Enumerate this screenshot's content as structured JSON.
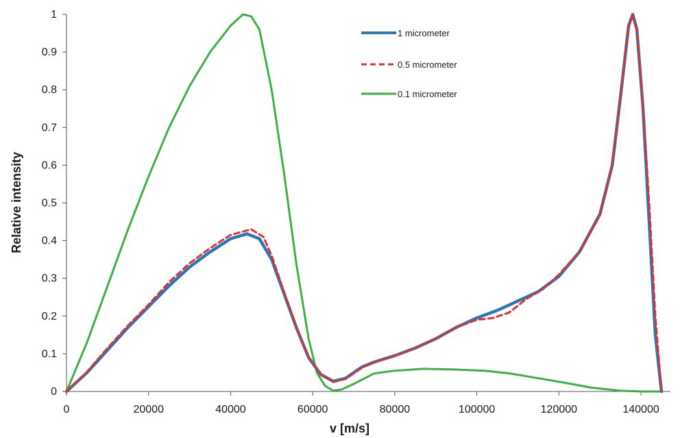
{
  "chart_data": {
    "type": "line",
    "title": "",
    "xlabel": "v [m/s]",
    "ylabel": "Relative intensity",
    "xlim": [
      0,
      150000
    ],
    "ylim": [
      0,
      1
    ],
    "x_ticks": [
      0,
      20000,
      40000,
      60000,
      80000,
      100000,
      120000,
      140000
    ],
    "x_tick_labels": [
      "0",
      "20000",
      "40000",
      "60000",
      "80000",
      "100000",
      "120000",
      "140000"
    ],
    "y_ticks": [
      0,
      0.1,
      0.2,
      0.3,
      0.4,
      0.5,
      0.6,
      0.7,
      0.8,
      0.9,
      1
    ],
    "y_tick_labels": [
      "0",
      "0.1",
      "0.2",
      "0.3",
      "0.4",
      "0.5",
      "0.6",
      "0.7",
      "0.8",
      "0.9",
      "1"
    ],
    "grid": false,
    "legend_position": "top-center",
    "series": [
      {
        "name": "1 micrometer",
        "color": "#2e75b6",
        "style": "solid",
        "points": [
          [
            0,
            0
          ],
          [
            5000,
            0.05
          ],
          [
            10000,
            0.11
          ],
          [
            15000,
            0.17
          ],
          [
            20000,
            0.225
          ],
          [
            25000,
            0.28
          ],
          [
            30000,
            0.33
          ],
          [
            35000,
            0.37
          ],
          [
            40000,
            0.405
          ],
          [
            44000,
            0.418
          ],
          [
            47000,
            0.405
          ],
          [
            50000,
            0.35
          ],
          [
            53000,
            0.26
          ],
          [
            56000,
            0.17
          ],
          [
            59000,
            0.09
          ],
          [
            62000,
            0.045
          ],
          [
            65000,
            0.027
          ],
          [
            68000,
            0.035
          ],
          [
            72000,
            0.065
          ],
          [
            75000,
            0.078
          ],
          [
            80000,
            0.095
          ],
          [
            85000,
            0.115
          ],
          [
            90000,
            0.14
          ],
          [
            95000,
            0.17
          ],
          [
            100000,
            0.195
          ],
          [
            105000,
            0.215
          ],
          [
            110000,
            0.24
          ],
          [
            115000,
            0.265
          ],
          [
            120000,
            0.305
          ],
          [
            125000,
            0.37
          ],
          [
            130000,
            0.47
          ],
          [
            133000,
            0.6
          ],
          [
            135000,
            0.78
          ],
          [
            137000,
            0.97
          ],
          [
            138000,
            1.0
          ],
          [
            139000,
            0.96
          ],
          [
            140500,
            0.75
          ],
          [
            142000,
            0.45
          ],
          [
            143500,
            0.15
          ],
          [
            145000,
            0
          ]
        ]
      },
      {
        "name": "0.5 micrometer",
        "color": "#e03030",
        "style": "dashed",
        "points": [
          [
            0,
            0
          ],
          [
            5000,
            0.052
          ],
          [
            10000,
            0.115
          ],
          [
            15000,
            0.175
          ],
          [
            20000,
            0.23
          ],
          [
            25000,
            0.29
          ],
          [
            30000,
            0.34
          ],
          [
            35000,
            0.38
          ],
          [
            40000,
            0.415
          ],
          [
            45000,
            0.43
          ],
          [
            48000,
            0.41
          ],
          [
            50000,
            0.36
          ],
          [
            53000,
            0.265
          ],
          [
            56000,
            0.17
          ],
          [
            59000,
            0.09
          ],
          [
            62000,
            0.045
          ],
          [
            65000,
            0.025
          ],
          [
            68000,
            0.033
          ],
          [
            72000,
            0.063
          ],
          [
            75000,
            0.078
          ],
          [
            80000,
            0.095
          ],
          [
            85000,
            0.115
          ],
          [
            90000,
            0.14
          ],
          [
            95000,
            0.17
          ],
          [
            100000,
            0.19
          ],
          [
            104000,
            0.195
          ],
          [
            108000,
            0.21
          ],
          [
            112000,
            0.245
          ],
          [
            116000,
            0.27
          ],
          [
            120000,
            0.31
          ],
          [
            125000,
            0.37
          ],
          [
            130000,
            0.47
          ],
          [
            133000,
            0.6
          ],
          [
            135000,
            0.78
          ],
          [
            137000,
            0.97
          ],
          [
            138000,
            1.0
          ],
          [
            139000,
            0.96
          ],
          [
            140500,
            0.76
          ],
          [
            142000,
            0.5
          ],
          [
            143500,
            0.2
          ],
          [
            145000,
            0
          ]
        ]
      },
      {
        "name": "0.1 micrometer",
        "color": "#3cb043",
        "style": "solid",
        "points": [
          [
            0,
            0
          ],
          [
            5000,
            0.13
          ],
          [
            10000,
            0.28
          ],
          [
            15000,
            0.43
          ],
          [
            20000,
            0.57
          ],
          [
            25000,
            0.7
          ],
          [
            30000,
            0.81
          ],
          [
            35000,
            0.9
          ],
          [
            40000,
            0.97
          ],
          [
            43000,
            1.0
          ],
          [
            45000,
            0.995
          ],
          [
            47000,
            0.96
          ],
          [
            50000,
            0.8
          ],
          [
            53000,
            0.58
          ],
          [
            56000,
            0.34
          ],
          [
            59000,
            0.14
          ],
          [
            61000,
            0.05
          ],
          [
            63000,
            0.015
          ],
          [
            65000,
            0.002
          ],
          [
            67000,
            0.005
          ],
          [
            70000,
            0.02
          ],
          [
            75000,
            0.048
          ],
          [
            80000,
            0.055
          ],
          [
            87000,
            0.06
          ],
          [
            95000,
            0.058
          ],
          [
            102000,
            0.055
          ],
          [
            108000,
            0.048
          ],
          [
            115000,
            0.035
          ],
          [
            122000,
            0.022
          ],
          [
            128000,
            0.01
          ],
          [
            135000,
            0.002
          ],
          [
            140000,
            0
          ],
          [
            145000,
            0
          ]
        ]
      }
    ]
  }
}
